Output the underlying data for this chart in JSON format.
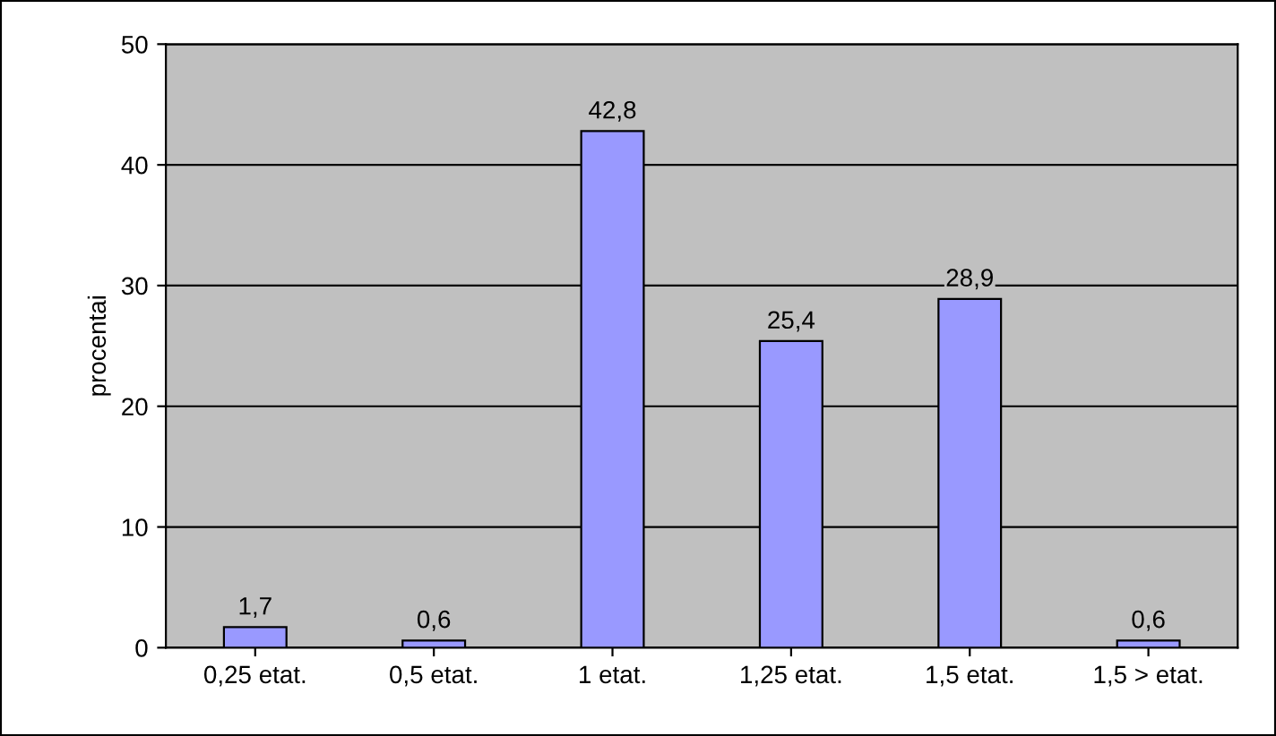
{
  "chart_data": {
    "type": "bar",
    "ylabel": "procentai",
    "categories": [
      "0,25 etat.",
      "0,5 etat.",
      "1 etat.",
      "1,25 etat.",
      "1,5 etat.",
      "1,5 > etat."
    ],
    "values": [
      1.7,
      0.6,
      42.8,
      25.4,
      28.9,
      0.6
    ],
    "value_labels": [
      "1,7",
      "0,6",
      "42,8",
      "25,4",
      "28,9",
      "0,6"
    ],
    "color": "#9999ff",
    "ylim": [
      0,
      50
    ],
    "yticks": [
      0,
      10,
      20,
      30,
      40,
      50
    ],
    "grid": "y",
    "legend": false
  }
}
